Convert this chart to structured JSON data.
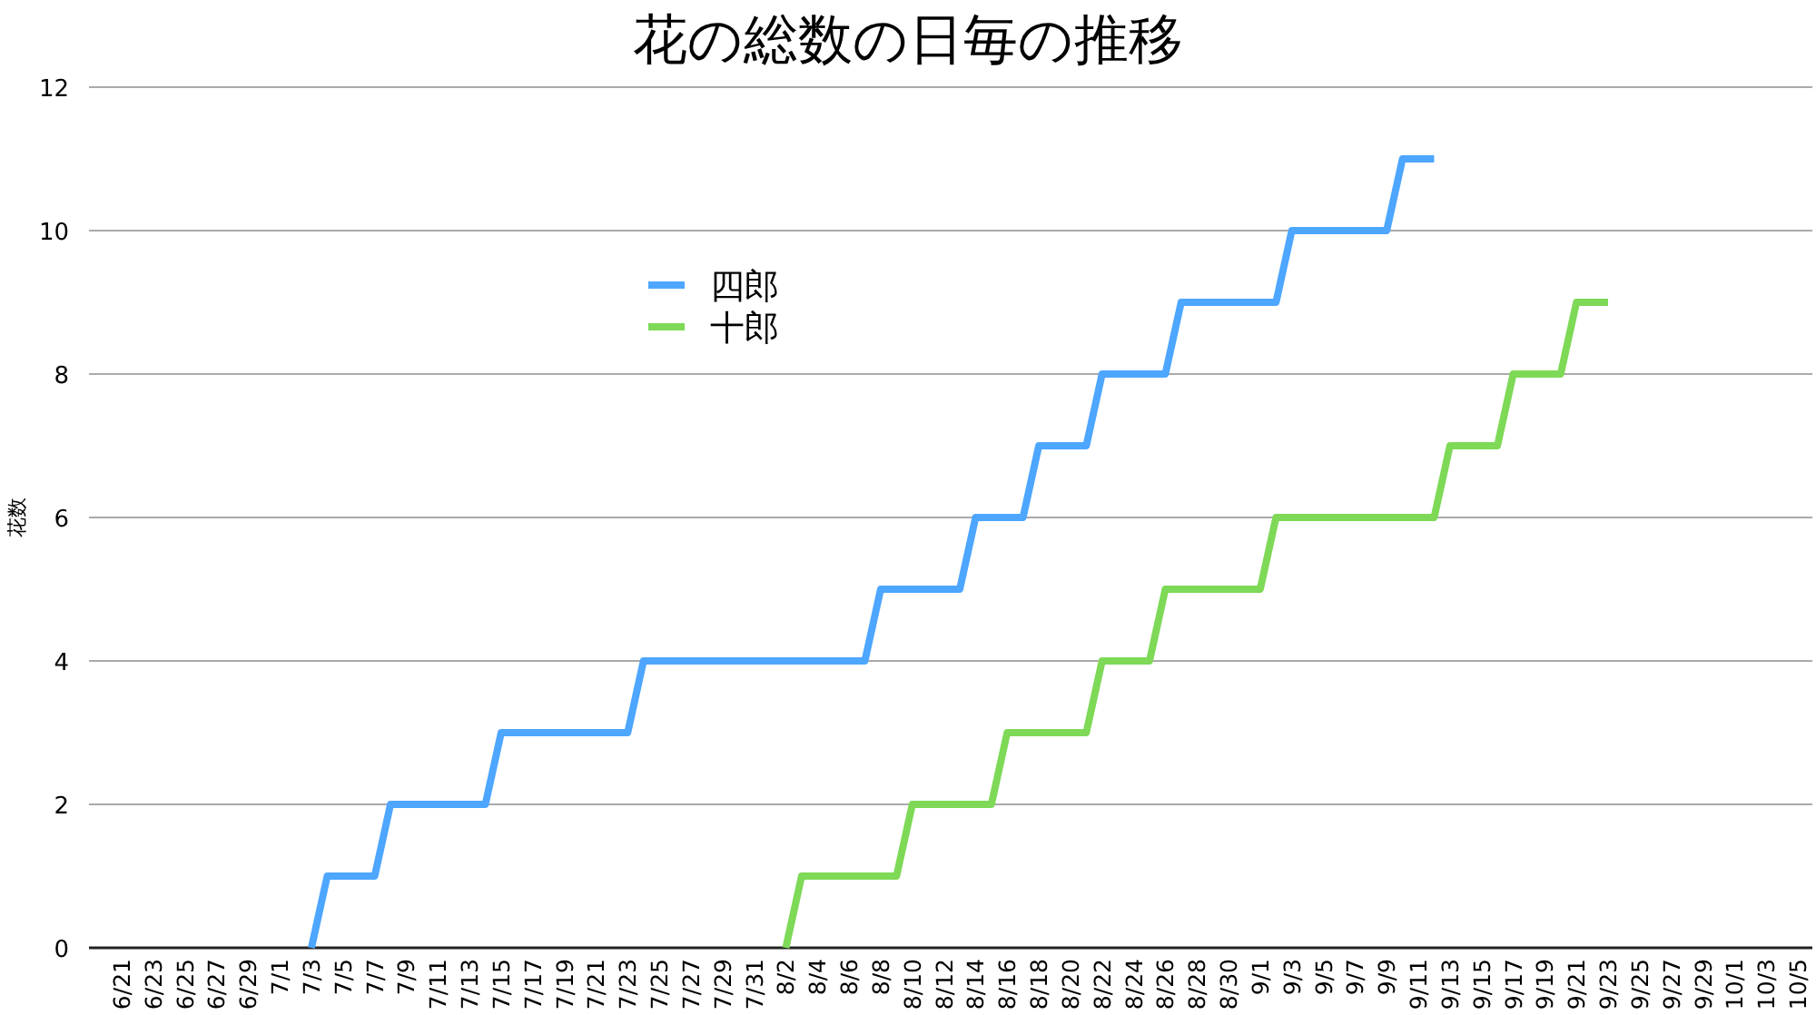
{
  "chart_data": {
    "type": "line",
    "title": "花の総数の日毎の推移",
    "ylabel": "花数",
    "categories": [
      "6/21",
      null,
      "6/23",
      null,
      "6/25",
      null,
      "6/27",
      null,
      "6/29",
      null,
      "7/1",
      null,
      "7/3",
      null,
      "7/5",
      null,
      "7/7",
      null,
      "7/9",
      null,
      "7/11",
      null,
      "7/13",
      null,
      "7/15",
      null,
      "7/17",
      null,
      "7/19",
      null,
      "7/21",
      null,
      "7/23",
      null,
      "7/25",
      null,
      "7/27",
      null,
      "7/29",
      null,
      "7/31",
      null,
      "8/2",
      null,
      "8/4",
      null,
      "8/6",
      null,
      "8/8",
      null,
      "8/10",
      null,
      "8/12",
      null,
      "8/14",
      null,
      "8/16",
      null,
      "8/18",
      null,
      "8/20",
      null,
      "8/22",
      null,
      "8/24",
      null,
      "8/26",
      null,
      "8/28",
      null,
      "8/30",
      null,
      "9/1",
      null,
      "9/3",
      null,
      "9/5",
      null,
      "9/7",
      null,
      "9/9",
      null,
      "9/11",
      null,
      "9/13",
      null,
      "9/15",
      null,
      "9/17",
      null,
      "9/19",
      null,
      "9/21",
      null,
      "9/23",
      null,
      "9/25",
      null,
      "9/27",
      null,
      "9/29",
      null,
      "10/1",
      null,
      "10/3",
      null,
      "10/5"
    ],
    "series": [
      {
        "name": "四郎",
        "color": "#4da6ff",
        "values": [
          null,
          null,
          null,
          null,
          null,
          null,
          null,
          null,
          null,
          null,
          null,
          null,
          0,
          1,
          1,
          1,
          1,
          2,
          2,
          2,
          2,
          2,
          2,
          2,
          3,
          3,
          3,
          3,
          3,
          3,
          3,
          3,
          3,
          4,
          4,
          4,
          4,
          4,
          4,
          4,
          4,
          4,
          4,
          4,
          4,
          4,
          4,
          4,
          5,
          5,
          5,
          5,
          5,
          5,
          6,
          6,
          6,
          6,
          7,
          7,
          7,
          7,
          8,
          8,
          8,
          8,
          8,
          9,
          9,
          9,
          9,
          9,
          9,
          9,
          10,
          10,
          10,
          10,
          10,
          10,
          10,
          11,
          11,
          11,
          null,
          null,
          null,
          null,
          null,
          null,
          null,
          null,
          null,
          null,
          null,
          null,
          null,
          null,
          null,
          null,
          null,
          null,
          null,
          null,
          null,
          null,
          null
        ]
      },
      {
        "name": "十郎",
        "color": "#7ed957",
        "values": [
          null,
          null,
          null,
          null,
          null,
          null,
          null,
          null,
          null,
          null,
          null,
          null,
          null,
          null,
          null,
          null,
          null,
          null,
          null,
          null,
          null,
          null,
          null,
          null,
          null,
          null,
          null,
          null,
          null,
          null,
          null,
          null,
          null,
          null,
          null,
          null,
          null,
          null,
          null,
          null,
          null,
          null,
          0,
          1,
          1,
          1,
          1,
          1,
          1,
          1,
          2,
          2,
          2,
          2,
          2,
          2,
          3,
          3,
          3,
          3,
          3,
          3,
          4,
          4,
          4,
          4,
          5,
          5,
          5,
          5,
          5,
          5,
          5,
          6,
          6,
          6,
          6,
          6,
          6,
          6,
          6,
          6,
          6,
          6,
          7,
          7,
          7,
          7,
          8,
          8,
          8,
          8,
          9,
          9,
          9,
          null,
          null,
          null,
          null,
          null,
          null,
          null,
          null,
          null,
          null,
          null,
          null
        ]
      }
    ],
    "ylim": [
      0,
      12
    ],
    "yticks": [
      0,
      2,
      4,
      6,
      8,
      10,
      12
    ],
    "grid": "y",
    "legend": "top"
  }
}
